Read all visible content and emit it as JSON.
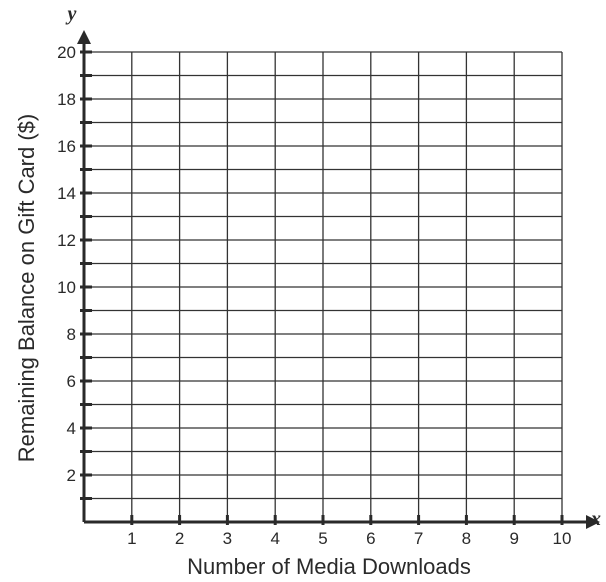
{
  "chart_data": {
    "type": "scatter",
    "title": "",
    "xlabel": "Number of Media Downloads",
    "ylabel": "Remaining Balance on Gift Card ($)",
    "x_axis_variable": "x",
    "y_axis_variable": "y",
    "xlim": [
      0,
      10
    ],
    "ylim": [
      0,
      20
    ],
    "x_ticks": [
      1,
      2,
      3,
      4,
      5,
      6,
      7,
      8,
      9,
      10
    ],
    "y_ticks": [
      2,
      4,
      6,
      8,
      10,
      12,
      14,
      16,
      18,
      20
    ],
    "x_tick_labels": [
      "1",
      "2",
      "3",
      "4",
      "5",
      "6",
      "7",
      "8",
      "9",
      "10"
    ],
    "y_tick_labels": [
      "2",
      "4",
      "6",
      "8",
      "10",
      "12",
      "14",
      "16",
      "18",
      "20"
    ],
    "grid": true,
    "grid_minor_y_step": 1,
    "series": [],
    "colors": {
      "ink": "#2a2a2a",
      "grid": "#333333",
      "background": "#ffffff"
    }
  }
}
